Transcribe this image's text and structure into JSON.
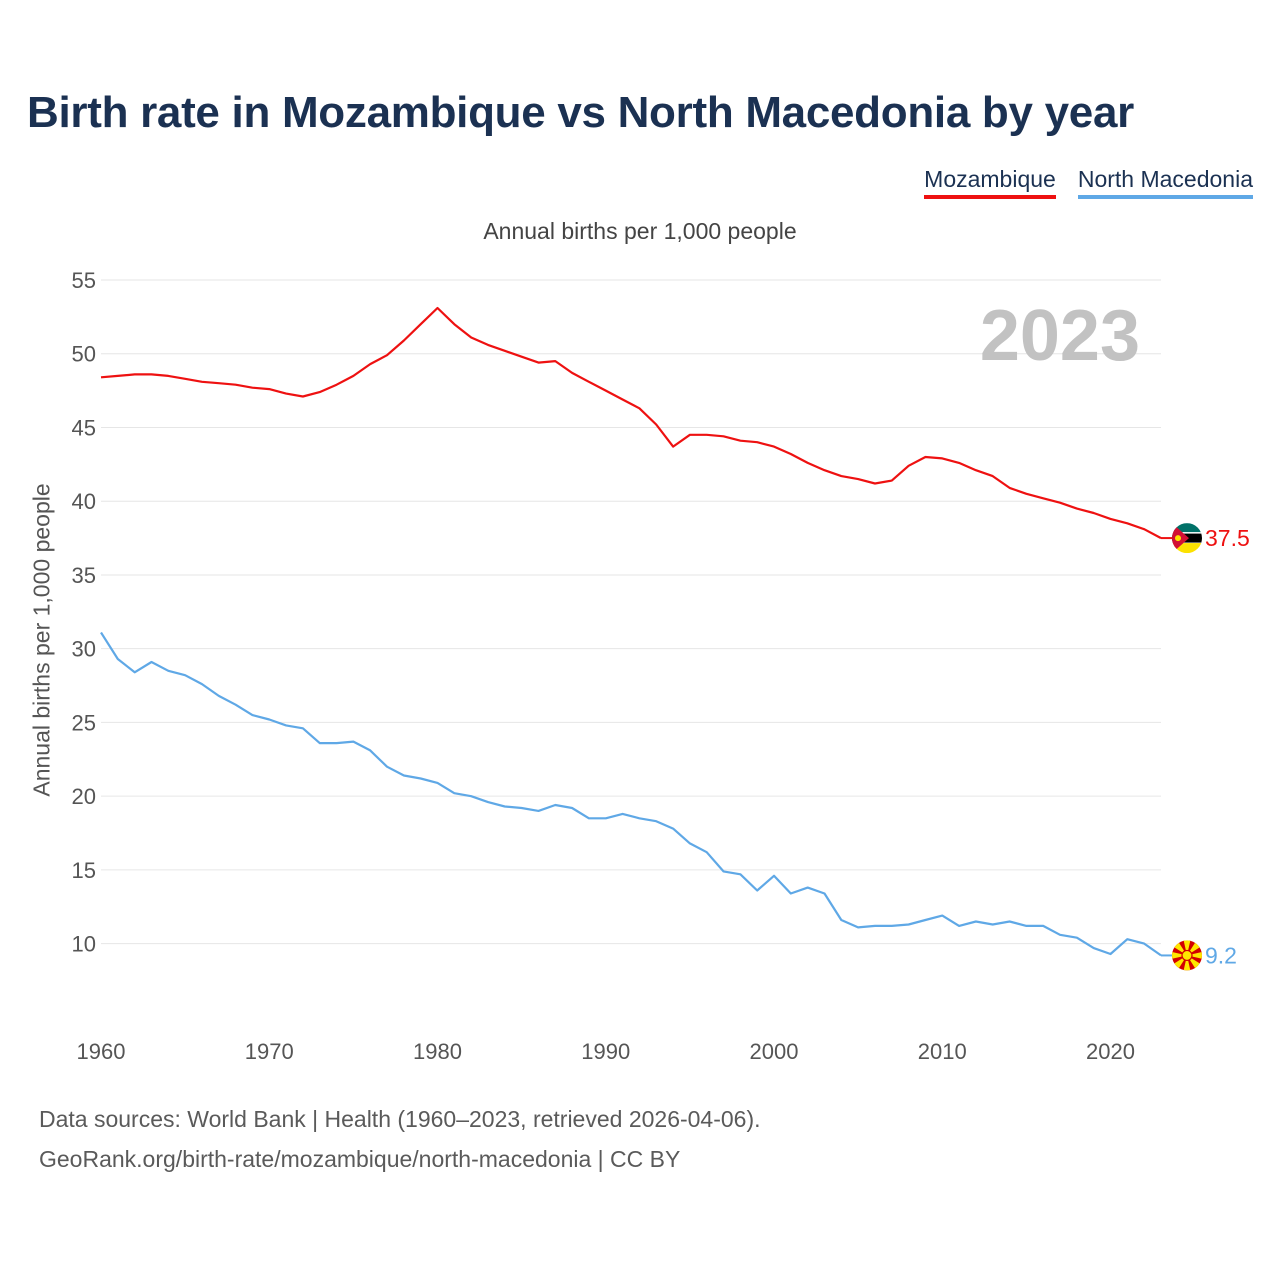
{
  "title": "Birth rate in Mozambique vs North Macedonia by year",
  "subtitle": "Annual births per 1,000 people",
  "year_display": "2023",
  "footer": {
    "line1": "Data sources: World Bank | Health (1960–2023, retrieved 2026-04-06).",
    "line2": "GeoRank.org/birth-rate/mozambique/north-macedonia | CC BY"
  },
  "legend": [
    {
      "name": "Mozambique",
      "color": "#ee1111"
    },
    {
      "name": "North Macedonia",
      "color": "#5fa8e6"
    }
  ],
  "chart_data": {
    "type": "line",
    "title": "Birth rate in Mozambique vs North Macedonia by year",
    "ylabel": "Annual births per 1,000 people",
    "xlabel": "",
    "xlim": [
      1960,
      2023
    ],
    "ylim": [
      5.5,
      55
    ],
    "yticks": [
      10,
      15,
      20,
      25,
      30,
      35,
      40,
      45,
      50,
      55
    ],
    "xticks": [
      1960,
      1970,
      1980,
      1990,
      2000,
      2010,
      2020
    ],
    "grid": true,
    "x": [
      1960,
      1961,
      1962,
      1963,
      1964,
      1965,
      1966,
      1967,
      1968,
      1969,
      1970,
      1971,
      1972,
      1973,
      1974,
      1975,
      1976,
      1977,
      1978,
      1979,
      1980,
      1981,
      1982,
      1983,
      1984,
      1985,
      1986,
      1987,
      1988,
      1989,
      1990,
      1991,
      1992,
      1993,
      1994,
      1995,
      1996,
      1997,
      1998,
      1999,
      2000,
      2001,
      2002,
      2003,
      2004,
      2005,
      2006,
      2007,
      2008,
      2009,
      2010,
      2011,
      2012,
      2013,
      2014,
      2015,
      2016,
      2017,
      2018,
      2019,
      2020,
      2021,
      2022,
      2023
    ],
    "series": [
      {
        "name": "Mozambique",
        "color": "#ee1111",
        "end_label": "37.5",
        "values": [
          48.4,
          48.5,
          48.6,
          48.6,
          48.5,
          48.3,
          48.1,
          48.0,
          47.9,
          47.7,
          47.6,
          47.3,
          47.1,
          47.4,
          47.9,
          48.5,
          49.3,
          49.9,
          50.9,
          52.0,
          53.1,
          52.0,
          51.1,
          50.6,
          50.2,
          49.8,
          49.4,
          49.5,
          48.7,
          48.1,
          47.5,
          46.9,
          46.3,
          45.2,
          43.7,
          44.5,
          44.5,
          44.4,
          44.1,
          44.0,
          43.7,
          43.2,
          42.6,
          42.1,
          41.7,
          41.5,
          41.2,
          41.4,
          42.4,
          43.0,
          42.9,
          42.6,
          42.1,
          41.7,
          40.9,
          40.5,
          40.2,
          39.9,
          39.5,
          39.2,
          38.8,
          38.5,
          38.1,
          37.5
        ]
      },
      {
        "name": "North Macedonia",
        "color": "#5fa8e6",
        "end_label": "9.2",
        "values": [
          31.1,
          29.3,
          28.4,
          29.1,
          28.5,
          28.2,
          27.6,
          26.8,
          26.2,
          25.5,
          25.2,
          24.8,
          24.6,
          23.6,
          23.6,
          23.7,
          23.1,
          22.0,
          21.4,
          21.2,
          20.9,
          20.2,
          20.0,
          19.6,
          19.3,
          19.2,
          19.0,
          19.4,
          19.2,
          18.5,
          18.5,
          18.8,
          18.5,
          18.3,
          17.8,
          16.8,
          16.2,
          14.9,
          14.7,
          13.6,
          14.6,
          13.4,
          13.8,
          13.4,
          11.6,
          11.1,
          11.2,
          11.2,
          11.3,
          11.6,
          11.9,
          11.2,
          11.5,
          11.3,
          11.5,
          11.2,
          11.2,
          10.6,
          10.4,
          9.7,
          9.3,
          10.3,
          10.0,
          9.2
        ]
      }
    ]
  }
}
